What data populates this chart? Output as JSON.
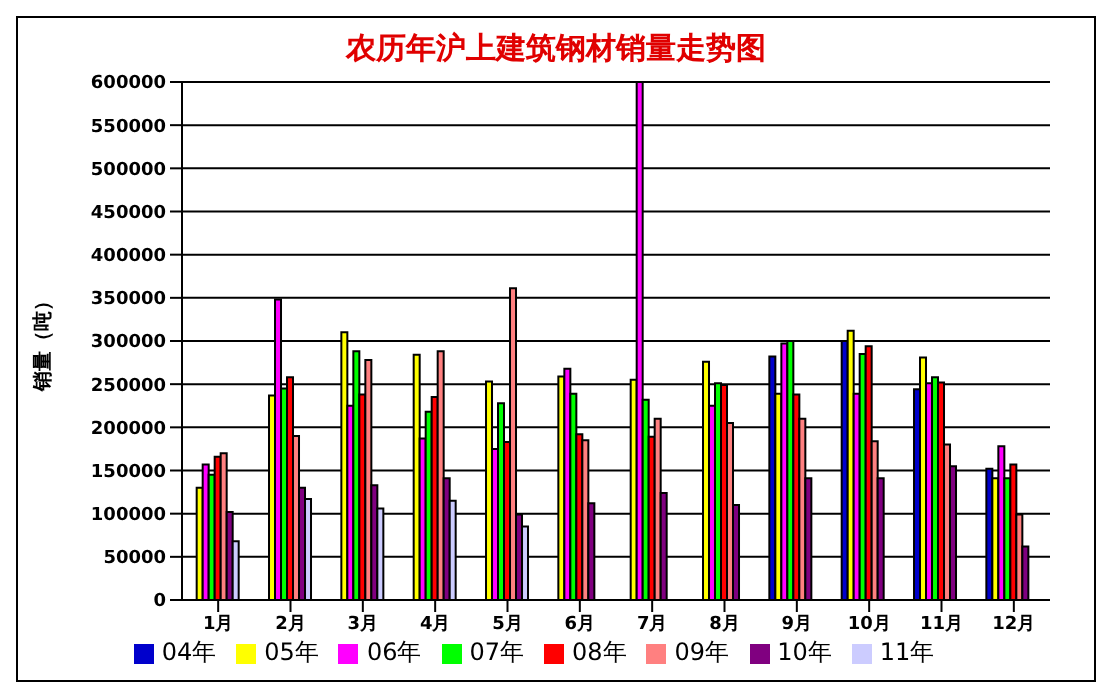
{
  "chart_data": {
    "type": "bar",
    "title": "农历年沪上建筑钢材销量走势图",
    "ylabel": "销量（吨）",
    "categories": [
      "1月",
      "2月",
      "3月",
      "4月",
      "5月",
      "6月",
      "7月",
      "8月",
      "9月",
      "10月",
      "11月",
      "12月"
    ],
    "series": [
      {
        "name": "04年",
        "color": "#0000cc",
        "values": [
          null,
          null,
          null,
          null,
          null,
          null,
          null,
          null,
          282000,
          300000,
          244000,
          152000
        ]
      },
      {
        "name": "05年",
        "color": "#ffff00",
        "values": [
          130000,
          237000,
          310000,
          284000,
          253000,
          259000,
          255000,
          276000,
          239000,
          312000,
          281000,
          141000
        ]
      },
      {
        "name": "06年",
        "color": "#ff00ff",
        "values": [
          157000,
          348000,
          225000,
          187000,
          175000,
          268000,
          600000,
          225000,
          297000,
          239000,
          251000,
          178000
        ]
      },
      {
        "name": "07年",
        "color": "#00ff00",
        "values": [
          145000,
          245000,
          288000,
          218000,
          228000,
          239000,
          232000,
          251000,
          300000,
          285000,
          258000,
          141000
        ]
      },
      {
        "name": "08年",
        "color": "#ff0000",
        "values": [
          166000,
          258000,
          238000,
          235000,
          183000,
          192000,
          189000,
          249000,
          238000,
          294000,
          252000,
          157000
        ]
      },
      {
        "name": "09年",
        "color": "#ff8080",
        "values": [
          170000,
          190000,
          278000,
          288000,
          361000,
          185000,
          210000,
          205000,
          210000,
          184000,
          180000,
          99000
        ]
      },
      {
        "name": "10年",
        "color": "#800080",
        "values": [
          102000,
          130000,
          133000,
          141000,
          99000,
          112000,
          124000,
          110000,
          141000,
          141000,
          155000,
          62000
        ]
      },
      {
        "name": "11年",
        "color": "#ccccff",
        "values": [
          68000,
          117000,
          106000,
          115000,
          85000,
          null,
          null,
          null,
          null,
          null,
          null,
          null
        ]
      }
    ],
    "ylim": [
      0,
      600000
    ],
    "yticks": [
      0,
      50000,
      100000,
      150000,
      200000,
      250000,
      300000,
      350000,
      400000,
      450000,
      500000,
      550000,
      600000
    ],
    "grid": "y",
    "legend": "bottom"
  }
}
